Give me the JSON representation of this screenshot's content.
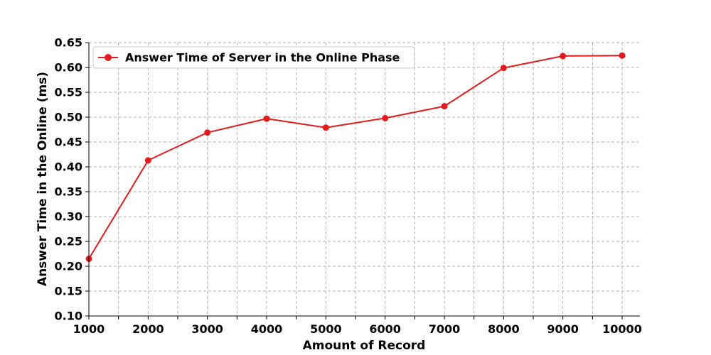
{
  "chart_data": {
    "type": "line",
    "title": "",
    "xlabel": "Amount of Record",
    "ylabel": "Answer Time in the Online (ms)",
    "xlim": [
      1000,
      10300
    ],
    "ylim": [
      0.1,
      0.65
    ],
    "x_ticks": [
      1000,
      2000,
      3000,
      4000,
      5000,
      6000,
      7000,
      8000,
      9000,
      10000
    ],
    "x_minor_ticks": [
      1500,
      2500,
      3500,
      4500,
      5500,
      6500,
      7500,
      8500,
      9500
    ],
    "y_ticks": [
      0.1,
      0.15,
      0.2,
      0.25,
      0.3,
      0.35,
      0.4,
      0.45,
      0.5,
      0.55,
      0.6,
      0.65
    ],
    "grid": true,
    "legend_position": "top-left",
    "series": [
      {
        "name": "Answer Time of Server in the Online Phase",
        "color": "#e41a1c",
        "marker": "circle",
        "x": [
          1000,
          2000,
          3000,
          4000,
          5000,
          6000,
          7000,
          8000,
          9000,
          10000
        ],
        "y": [
          0.215,
          0.413,
          0.469,
          0.497,
          0.479,
          0.498,
          0.522,
          0.599,
          0.623,
          0.624
        ]
      }
    ]
  }
}
